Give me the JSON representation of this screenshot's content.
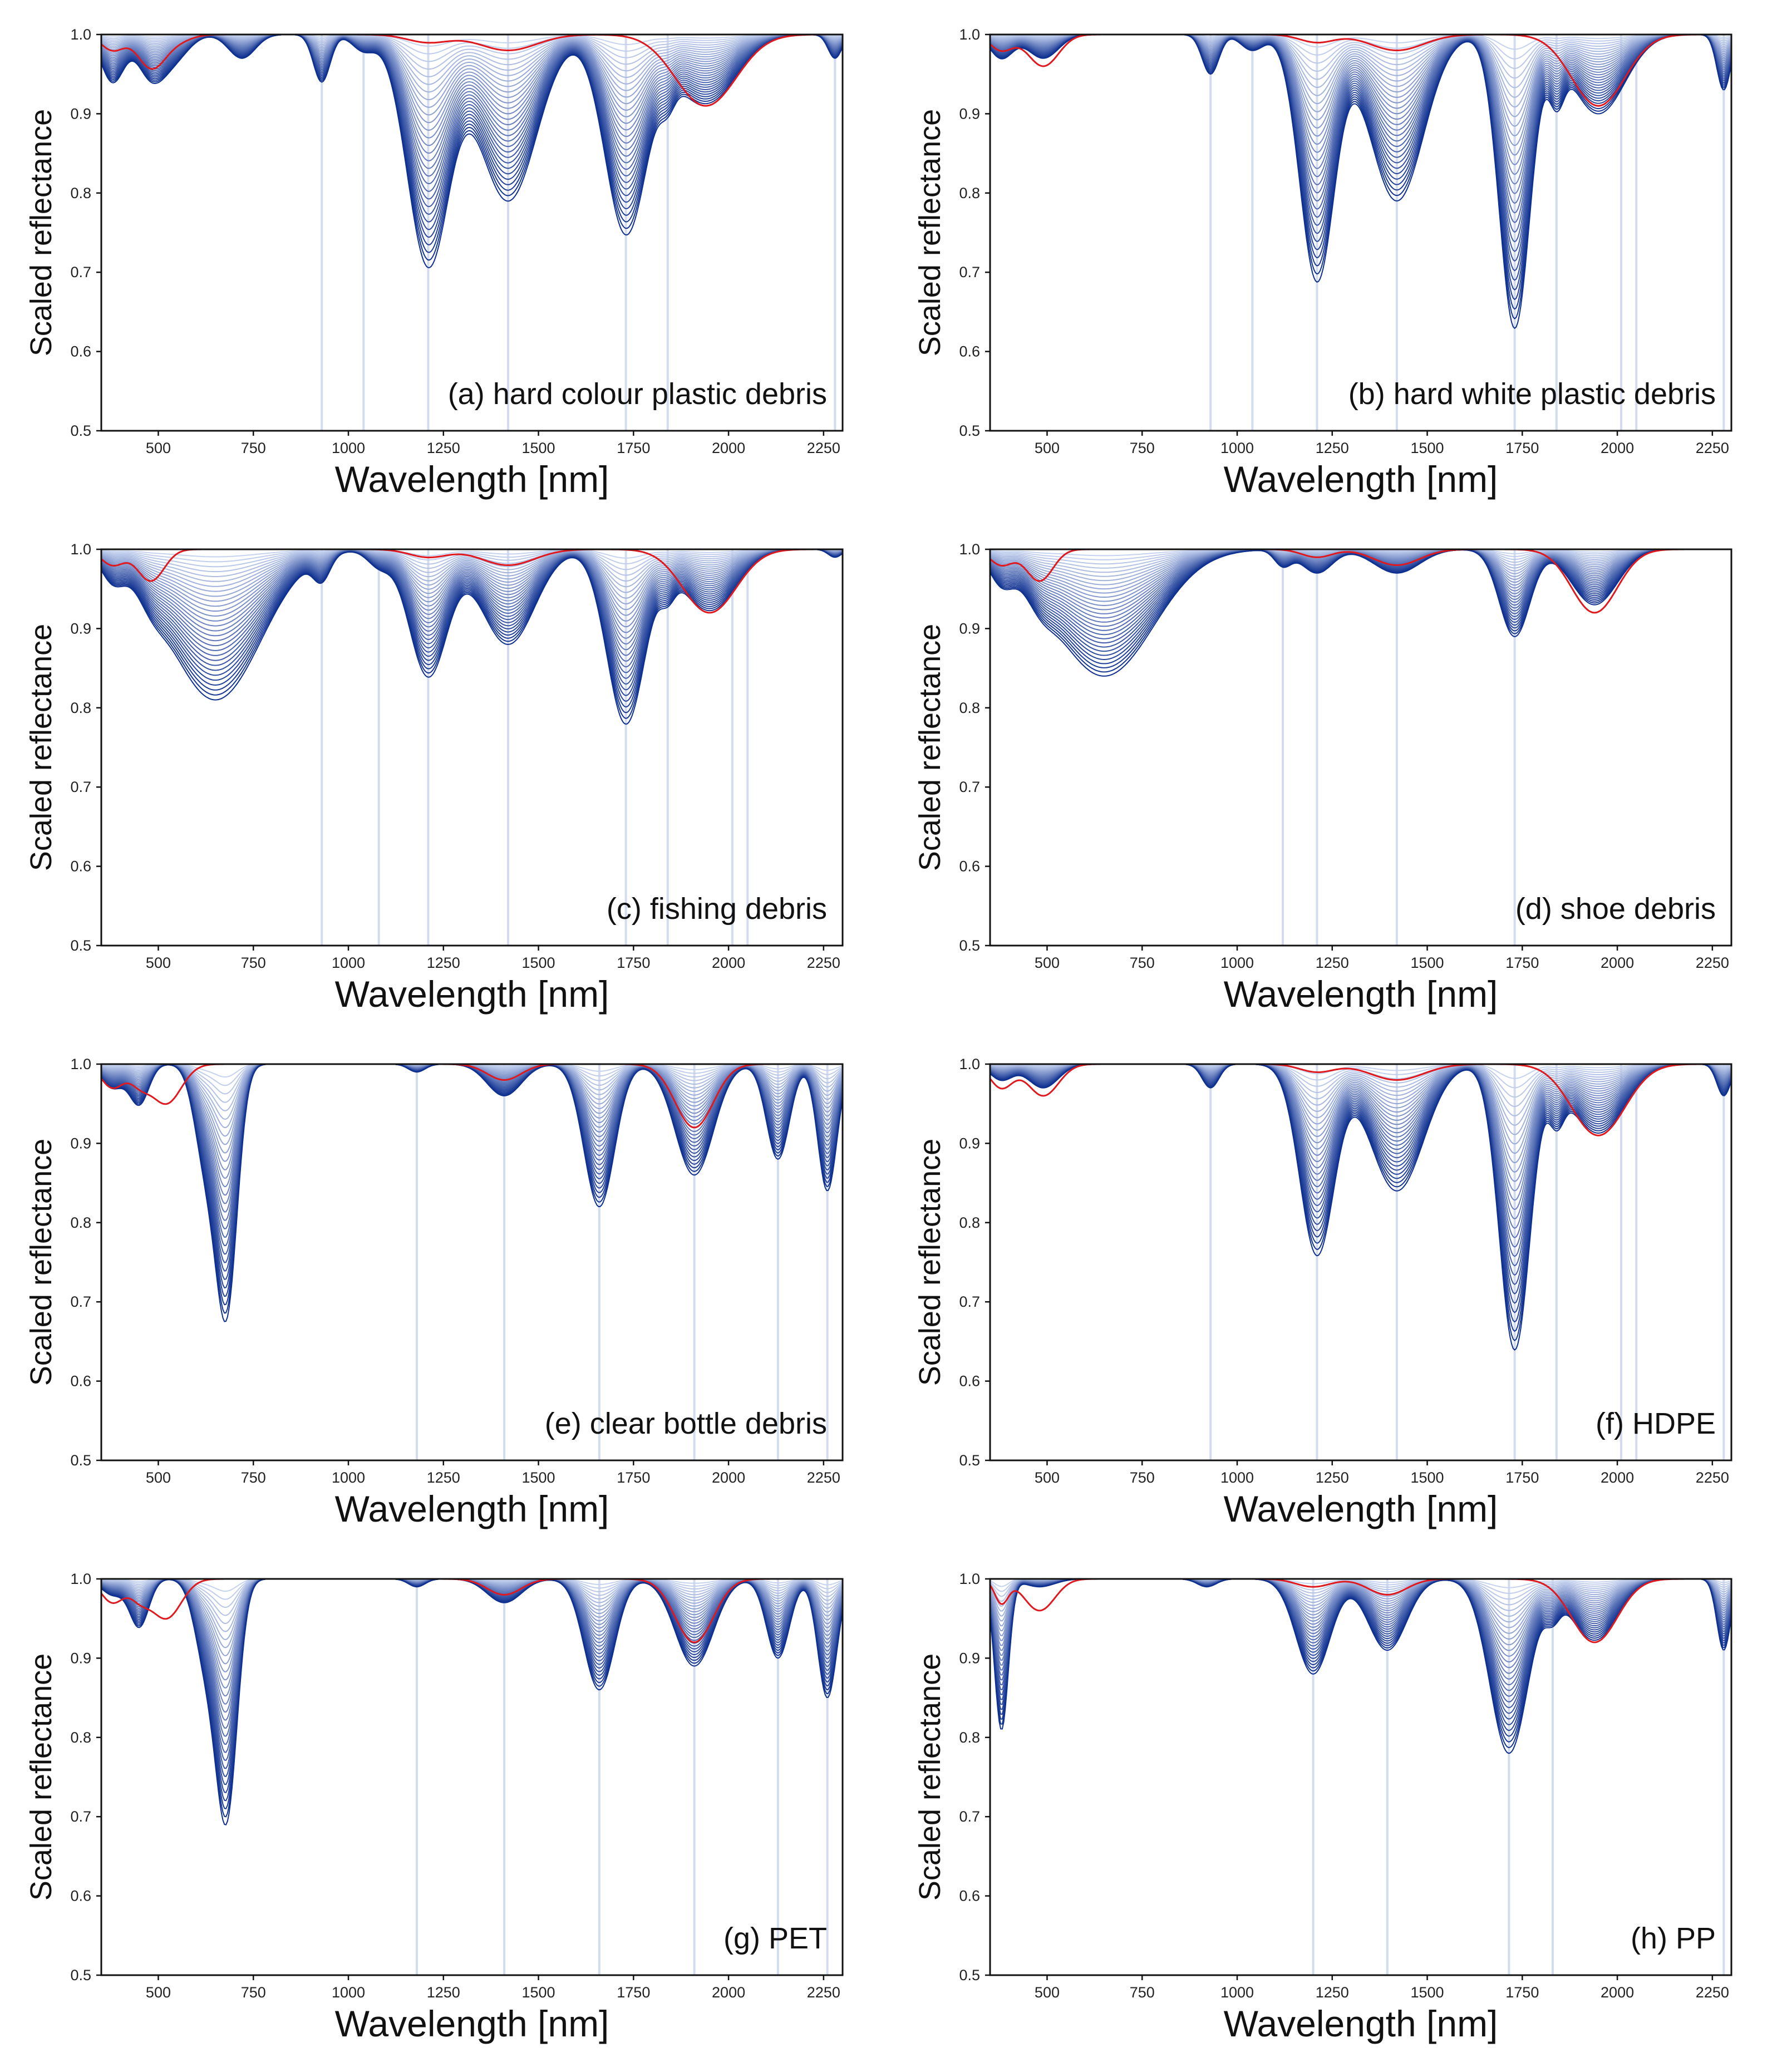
{
  "figure": {
    "colors": {
      "reference": "#e0191f",
      "series_dark": "#0d2f8f",
      "series_light": "#c6d3f0",
      "feature_line": "#d3dcef",
      "axis": "#111111"
    }
  },
  "chart_data": [
    {
      "type": "line",
      "title": "(a) hard colour plastic debris",
      "xlabel": "Wavelength [nm]",
      "ylabel": "Scaled reflectance",
      "xlim": [
        350,
        2300
      ],
      "ylim": [
        0.5,
        1.0
      ],
      "xticks": [
        500,
        750,
        1000,
        1250,
        1500,
        1750,
        2000,
        2250
      ],
      "yticks": [
        "0.5",
        "0.6",
        "0.7",
        "0.8",
        "0.9",
        "1.0"
      ],
      "feature_wavelengths": [
        930,
        1040,
        1210,
        1420,
        1730,
        1840,
        2280
      ],
      "series_count": 30,
      "absorption_features": [
        {
          "center": 380,
          "width": 30,
          "max_depth": 0.06,
          "ref_depth": 0.02
        },
        {
          "center": 480,
          "width": 35,
          "max_depth": 0.05,
          "ref_depth": 0.04
        },
        {
          "center": 540,
          "width": 40,
          "max_depth": 0.03,
          "ref_depth": 0.01
        },
        {
          "center": 720,
          "width": 35,
          "max_depth": 0.03,
          "ref_depth": 0.0
        },
        {
          "center": 930,
          "width": 22,
          "max_depth": 0.06,
          "ref_depth": 0.0
        },
        {
          "center": 1040,
          "width": 30,
          "max_depth": 0.02,
          "ref_depth": 0.0
        },
        {
          "center": 1210,
          "width": 55,
          "max_depth": 0.29,
          "ref_depth": 0.01
        },
        {
          "center": 1420,
          "width": 75,
          "max_depth": 0.21,
          "ref_depth": 0.02
        },
        {
          "center": 1730,
          "width": 55,
          "max_depth": 0.25,
          "ref_depth": 0.0
        },
        {
          "center": 1840,
          "width": 20,
          "max_depth": 0.03,
          "ref_depth": 0.0
        },
        {
          "center": 1940,
          "width": 80,
          "max_depth": 0.09,
          "ref_depth": 0.09
        },
        {
          "center": 2280,
          "width": 18,
          "max_depth": 0.03,
          "ref_depth": 0.0
        }
      ]
    },
    {
      "type": "line",
      "title": "(b) hard white plastic debris",
      "xlabel": "Wavelength [nm]",
      "ylabel": "Scaled reflectance",
      "xlim": [
        350,
        2300
      ],
      "ylim": [
        0.5,
        1.0
      ],
      "xticks": [
        500,
        750,
        1000,
        1250,
        1500,
        1750,
        2000,
        2250
      ],
      "yticks": [
        "0.5",
        "0.6",
        "0.7",
        "0.8",
        "0.9",
        "1.0"
      ],
      "feature_wavelengths": [
        930,
        1040,
        1210,
        1420,
        1730,
        1840,
        2010,
        2050,
        2280
      ],
      "series_count": 30,
      "absorption_features": [
        {
          "center": 380,
          "width": 30,
          "max_depth": 0.03,
          "ref_depth": 0.02
        },
        {
          "center": 490,
          "width": 40,
          "max_depth": 0.03,
          "ref_depth": 0.04
        },
        {
          "center": 930,
          "width": 22,
          "max_depth": 0.05,
          "ref_depth": 0.0
        },
        {
          "center": 1040,
          "width": 30,
          "max_depth": 0.02,
          "ref_depth": 0.0
        },
        {
          "center": 1210,
          "width": 45,
          "max_depth": 0.31,
          "ref_depth": 0.01
        },
        {
          "center": 1420,
          "width": 70,
          "max_depth": 0.21,
          "ref_depth": 0.02
        },
        {
          "center": 1730,
          "width": 40,
          "max_depth": 0.37,
          "ref_depth": 0.0
        },
        {
          "center": 1840,
          "width": 20,
          "max_depth": 0.06,
          "ref_depth": 0.0
        },
        {
          "center": 1950,
          "width": 70,
          "max_depth": 0.1,
          "ref_depth": 0.09
        },
        {
          "center": 2280,
          "width": 18,
          "max_depth": 0.07,
          "ref_depth": 0.0
        }
      ]
    },
    {
      "type": "line",
      "title": "(c) fishing debris",
      "xlabel": "Wavelength [nm]",
      "ylabel": "Scaled reflectance",
      "xlim": [
        350,
        2300
      ],
      "ylim": [
        0.5,
        1.0
      ],
      "xticks": [
        500,
        750,
        1000,
        1250,
        1500,
        1750,
        2000,
        2250
      ],
      "yticks": [
        "0.5",
        "0.6",
        "0.7",
        "0.8",
        "0.9",
        "1.0"
      ],
      "feature_wavelengths": [
        930,
        1080,
        1210,
        1420,
        1730,
        1840,
        2010,
        2050
      ],
      "series_count": 30,
      "absorption_features": [
        {
          "center": 380,
          "width": 30,
          "max_depth": 0.03,
          "ref_depth": 0.02
        },
        {
          "center": 480,
          "width": 35,
          "max_depth": 0.02,
          "ref_depth": 0.04
        },
        {
          "center": 650,
          "width": 120,
          "max_depth": 0.19,
          "ref_depth": 0.0
        },
        {
          "center": 930,
          "width": 22,
          "max_depth": 0.03,
          "ref_depth": 0.0
        },
        {
          "center": 1080,
          "width": 30,
          "max_depth": 0.02,
          "ref_depth": 0.0
        },
        {
          "center": 1210,
          "width": 50,
          "max_depth": 0.16,
          "ref_depth": 0.01
        },
        {
          "center": 1420,
          "width": 70,
          "max_depth": 0.12,
          "ref_depth": 0.02
        },
        {
          "center": 1730,
          "width": 50,
          "max_depth": 0.22,
          "ref_depth": 0.0
        },
        {
          "center": 1840,
          "width": 20,
          "max_depth": 0.03,
          "ref_depth": 0.0
        },
        {
          "center": 1950,
          "width": 70,
          "max_depth": 0.08,
          "ref_depth": 0.08
        },
        {
          "center": 2280,
          "width": 18,
          "max_depth": 0.01,
          "ref_depth": 0.0
        }
      ]
    },
    {
      "type": "line",
      "title": "(d) shoe debris",
      "xlabel": "Wavelength [nm]",
      "ylabel": "Scaled reflectance",
      "xlim": [
        350,
        2300
      ],
      "ylim": [
        0.5,
        1.0
      ],
      "xticks": [
        500,
        750,
        1000,
        1250,
        1500,
        1750,
        2000,
        2250
      ],
      "yticks": [
        "0.5",
        "0.6",
        "0.7",
        "0.8",
        "0.9",
        "1.0"
      ],
      "feature_wavelengths": [
        1120,
        1210,
        1420,
        1730
      ],
      "series_count": 30,
      "absorption_features": [
        {
          "center": 380,
          "width": 30,
          "max_depth": 0.03,
          "ref_depth": 0.02
        },
        {
          "center": 480,
          "width": 35,
          "max_depth": 0.02,
          "ref_depth": 0.04
        },
        {
          "center": 650,
          "width": 130,
          "max_depth": 0.16,
          "ref_depth": 0.0
        },
        {
          "center": 1120,
          "width": 22,
          "max_depth": 0.02,
          "ref_depth": 0.0
        },
        {
          "center": 1210,
          "width": 40,
          "max_depth": 0.03,
          "ref_depth": 0.01
        },
        {
          "center": 1420,
          "width": 60,
          "max_depth": 0.03,
          "ref_depth": 0.02
        },
        {
          "center": 1730,
          "width": 40,
          "max_depth": 0.11,
          "ref_depth": 0.0
        },
        {
          "center": 1940,
          "width": 60,
          "max_depth": 0.07,
          "ref_depth": 0.08
        }
      ]
    },
    {
      "type": "line",
      "title": "(e) clear bottle debris",
      "xlabel": "Wavelength [nm]",
      "ylabel": "Scaled reflectance",
      "xlim": [
        350,
        2300
      ],
      "ylim": [
        0.5,
        1.0
      ],
      "xticks": [
        500,
        750,
        1000,
        1250,
        1500,
        1750,
        2000,
        2250
      ],
      "yticks": [
        "0.5",
        "0.6",
        "0.7",
        "0.8",
        "0.9",
        "1.0"
      ],
      "feature_wavelengths": [
        1180,
        1410,
        1660,
        1910,
        2130,
        2260
      ],
      "series_count": 30,
      "absorption_features": [
        {
          "center": 380,
          "width": 30,
          "max_depth": 0.03,
          "ref_depth": 0.03
        },
        {
          "center": 450,
          "width": 25,
          "max_depth": 0.05,
          "ref_depth": 0.02
        },
        {
          "center": 520,
          "width": 40,
          "max_depth": 0.0,
          "ref_depth": 0.05
        },
        {
          "center": 625,
          "width": 30,
          "max_depth": 0.12,
          "ref_depth": 0.0
        },
        {
          "center": 680,
          "width": 28,
          "max_depth": 0.3,
          "ref_depth": 0.0
        },
        {
          "center": 1180,
          "width": 22,
          "max_depth": 0.01,
          "ref_depth": 0.0
        },
        {
          "center": 1410,
          "width": 45,
          "max_depth": 0.04,
          "ref_depth": 0.02
        },
        {
          "center": 1660,
          "width": 40,
          "max_depth": 0.18,
          "ref_depth": 0.0
        },
        {
          "center": 1910,
          "width": 50,
          "max_depth": 0.14,
          "ref_depth": 0.08
        },
        {
          "center": 2130,
          "width": 30,
          "max_depth": 0.12,
          "ref_depth": 0.0
        },
        {
          "center": 2260,
          "width": 25,
          "max_depth": 0.16,
          "ref_depth": 0.0
        }
      ]
    },
    {
      "type": "line",
      "title": "(f) HDPE",
      "xlabel": "Wavelength [nm]",
      "ylabel": "Scaled reflectance",
      "xlim": [
        350,
        2300
      ],
      "ylim": [
        0.5,
        1.0
      ],
      "xticks": [
        500,
        750,
        1000,
        1250,
        1500,
        1750,
        2000,
        2250
      ],
      "yticks": [
        "0.5",
        "0.6",
        "0.7",
        "0.8",
        "0.9",
        "1.0"
      ],
      "feature_wavelengths": [
        930,
        1210,
        1420,
        1730,
        1840,
        2010,
        2050,
        2280
      ],
      "series_count": 30,
      "absorption_features": [
        {
          "center": 380,
          "width": 30,
          "max_depth": 0.02,
          "ref_depth": 0.03
        },
        {
          "center": 490,
          "width": 40,
          "max_depth": 0.03,
          "ref_depth": 0.04
        },
        {
          "center": 930,
          "width": 22,
          "max_depth": 0.03,
          "ref_depth": 0.0
        },
        {
          "center": 1210,
          "width": 45,
          "max_depth": 0.24,
          "ref_depth": 0.01
        },
        {
          "center": 1420,
          "width": 70,
          "max_depth": 0.16,
          "ref_depth": 0.02
        },
        {
          "center": 1730,
          "width": 40,
          "max_depth": 0.36,
          "ref_depth": 0.0
        },
        {
          "center": 1840,
          "width": 20,
          "max_depth": 0.05,
          "ref_depth": 0.0
        },
        {
          "center": 1950,
          "width": 70,
          "max_depth": 0.09,
          "ref_depth": 0.09
        },
        {
          "center": 2280,
          "width": 18,
          "max_depth": 0.04,
          "ref_depth": 0.0
        }
      ]
    },
    {
      "type": "line",
      "title": "(g) PET",
      "xlabel": "Wavelength [nm]",
      "ylabel": "Scaled reflectance",
      "xlim": [
        350,
        2300
      ],
      "ylim": [
        0.5,
        1.0
      ],
      "xticks": [
        500,
        750,
        1000,
        1250,
        1500,
        1750,
        2000,
        2250
      ],
      "yticks": [
        "0.5",
        "0.6",
        "0.7",
        "0.8",
        "0.9",
        "1.0"
      ],
      "feature_wavelengths": [
        1180,
        1410,
        1660,
        1910,
        2130,
        2260
      ],
      "series_count": 30,
      "absorption_features": [
        {
          "center": 380,
          "width": 30,
          "max_depth": 0.02,
          "ref_depth": 0.03
        },
        {
          "center": 450,
          "width": 25,
          "max_depth": 0.06,
          "ref_depth": 0.02
        },
        {
          "center": 520,
          "width": 40,
          "max_depth": 0.0,
          "ref_depth": 0.05
        },
        {
          "center": 625,
          "width": 30,
          "max_depth": 0.1,
          "ref_depth": 0.0
        },
        {
          "center": 680,
          "width": 28,
          "max_depth": 0.29,
          "ref_depth": 0.0
        },
        {
          "center": 1180,
          "width": 22,
          "max_depth": 0.01,
          "ref_depth": 0.0
        },
        {
          "center": 1410,
          "width": 45,
          "max_depth": 0.03,
          "ref_depth": 0.02
        },
        {
          "center": 1660,
          "width": 40,
          "max_depth": 0.14,
          "ref_depth": 0.0
        },
        {
          "center": 1910,
          "width": 50,
          "max_depth": 0.11,
          "ref_depth": 0.08
        },
        {
          "center": 2130,
          "width": 30,
          "max_depth": 0.1,
          "ref_depth": 0.0
        },
        {
          "center": 2260,
          "width": 25,
          "max_depth": 0.15,
          "ref_depth": 0.0
        }
      ]
    },
    {
      "type": "line",
      "title": "(h) PP",
      "xlabel": "Wavelength [nm]",
      "ylabel": "Scaled reflectance",
      "xlim": [
        350,
        2300
      ],
      "ylim": [
        0.5,
        1.0
      ],
      "xticks": [
        500,
        750,
        1000,
        1250,
        1500,
        1750,
        2000,
        2250
      ],
      "yticks": [
        "0.5",
        "0.6",
        "0.7",
        "0.8",
        "0.9",
        "1.0"
      ],
      "feature_wavelengths": [
        1200,
        1395,
        1715,
        1830,
        2280
      ],
      "series_count": 30,
      "absorption_features": [
        {
          "center": 380,
          "width": 18,
          "max_depth": 0.19,
          "ref_depth": 0.03
        },
        {
          "center": 480,
          "width": 40,
          "max_depth": 0.01,
          "ref_depth": 0.04
        },
        {
          "center": 920,
          "width": 25,
          "max_depth": 0.01,
          "ref_depth": 0.0
        },
        {
          "center": 1200,
          "width": 45,
          "max_depth": 0.12,
          "ref_depth": 0.01
        },
        {
          "center": 1395,
          "width": 50,
          "max_depth": 0.09,
          "ref_depth": 0.02
        },
        {
          "center": 1715,
          "width": 50,
          "max_depth": 0.22,
          "ref_depth": 0.0
        },
        {
          "center": 1830,
          "width": 20,
          "max_depth": 0.03,
          "ref_depth": 0.0
        },
        {
          "center": 1940,
          "width": 60,
          "max_depth": 0.08,
          "ref_depth": 0.08
        },
        {
          "center": 2280,
          "width": 18,
          "max_depth": 0.09,
          "ref_depth": 0.0
        }
      ]
    }
  ]
}
